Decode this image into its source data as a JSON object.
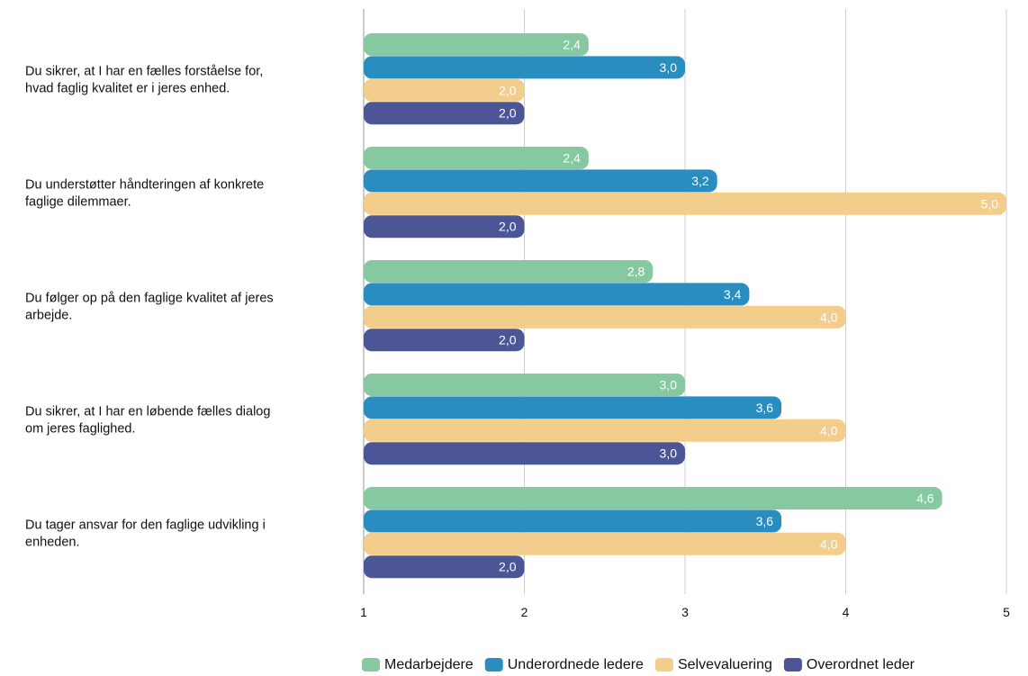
{
  "chart_data": {
    "type": "bar",
    "orientation": "horizontal",
    "title": "",
    "xlabel": "",
    "ylabel": "",
    "xlim": [
      1,
      5
    ],
    "xticks": [
      "1",
      "2",
      "3",
      "4",
      "5"
    ],
    "grid": true,
    "legend_position": "bottom",
    "categories": [
      [
        "Du sikrer, at I har en fælles forståelse for,",
        "hvad faglig kvalitet er i jeres enhed."
      ],
      [
        "Du understøtter håndteringen af konkrete",
        "faglige dilemmaer."
      ],
      [
        "Du følger op på den faglige kvalitet af jeres",
        "arbejde."
      ],
      [
        "Du sikrer, at I har en løbende fælles dialog",
        "om jeres faglighed."
      ],
      [
        "Du tager ansvar for den faglige udvikling i",
        "enheden."
      ]
    ],
    "series": [
      {
        "name": "Medarbejdere",
        "color": "#86c9a1",
        "values": [
          2.4,
          2.4,
          2.8,
          3.0,
          4.6
        ],
        "labels": [
          "2,4",
          "2,4",
          "2,8",
          "3,0",
          "4,6"
        ]
      },
      {
        "name": "Underordnede ledere",
        "color": "#2a8dc0",
        "values": [
          3.0,
          3.2,
          3.4,
          3.6,
          3.6
        ],
        "labels": [
          "3,0",
          "3,2",
          "3,4",
          "3,6",
          "3,6"
        ]
      },
      {
        "name": "Selvevaluering",
        "color": "#f2cd8b",
        "values": [
          2.0,
          5.0,
          4.0,
          4.0,
          4.0
        ],
        "labels": [
          "2,0",
          "5,0",
          "4,0",
          "4,0",
          "4,0"
        ]
      },
      {
        "name": "Overordnet leder",
        "color": "#4c5596",
        "values": [
          2.0,
          2.0,
          2.0,
          3.0,
          2.0
        ],
        "labels": [
          "2,0",
          "2,0",
          "2,0",
          "3,0",
          "2,0"
        ]
      }
    ]
  }
}
